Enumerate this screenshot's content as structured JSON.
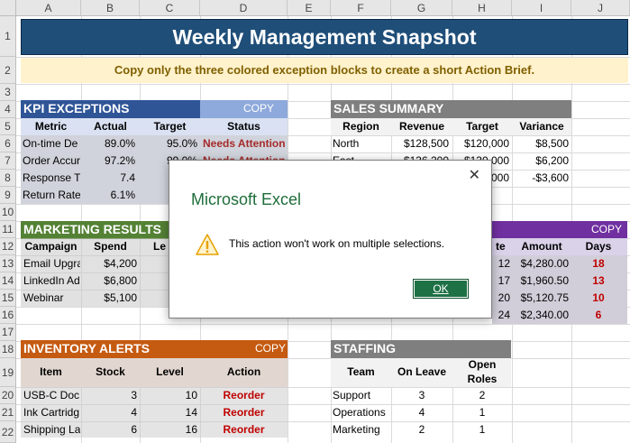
{
  "columns": [
    "A",
    "B",
    "C",
    "D",
    "E",
    "F",
    "G",
    "H",
    "I",
    "J"
  ],
  "rows": [
    "1",
    "2",
    "3",
    "4",
    "5",
    "6",
    "7",
    "8",
    "9",
    "10",
    "11",
    "12",
    "13",
    "14",
    "15",
    "16",
    "17",
    "18",
    "19",
    "20",
    "21",
    "22"
  ],
  "title": "Weekly Management Snapshot",
  "instruction": "Copy only the three colored exception blocks to create a short Action Brief.",
  "copy_label": "COPY",
  "colors": {
    "title_bg": "#1f4e79",
    "instruction_bg": "#fff2cc",
    "kpi": "#4472c4",
    "marketing": "#70ad47",
    "inventory": "#c55a11",
    "neutral": "#7f7f7f",
    "purple": "#7030a0",
    "attention": "#c00000"
  },
  "kpi": {
    "header": "KPI EXCEPTIONS",
    "columns": [
      "Metric",
      "Actual",
      "Target",
      "Status"
    ],
    "rows": [
      [
        "On-time De",
        "89.0%",
        "95.0%",
        "Needs Attention"
      ],
      [
        "Order Accur",
        "97.2%",
        "99.0%",
        "Needs Attention"
      ],
      [
        "Response T",
        "7.4",
        "",
        ""
      ],
      [
        "Return Rate",
        "6.1%",
        "",
        ""
      ]
    ]
  },
  "sales": {
    "header": "SALES SUMMARY",
    "columns": [
      "Region",
      "Revenue",
      "Target",
      "Variance"
    ],
    "rows": [
      [
        "North",
        "$128,500",
        "$120,000",
        "$8,500"
      ],
      [
        "East",
        "$136,200",
        "$130,000",
        "$6,200"
      ],
      [
        "",
        "",
        "000",
        "-$3,600"
      ]
    ]
  },
  "marketing": {
    "header": "MARKETING RESULTS",
    "columns": [
      "Campaign",
      "Spend",
      "Le"
    ],
    "rows": [
      [
        "Email Upgra",
        "$4,200"
      ],
      [
        "LinkedIn Ad",
        "$6,800"
      ],
      [
        "Webinar",
        "$5,100"
      ]
    ]
  },
  "overdue": {
    "columns": [
      "te",
      "Amount",
      "Days"
    ],
    "rows": [
      [
        "12",
        "$4,280.00",
        "18"
      ],
      [
        "17",
        "$1,960.50",
        "13"
      ],
      [
        "20",
        "$5,120.75",
        "10"
      ],
      [
        "24",
        "$2,340.00",
        "6"
      ]
    ]
  },
  "inventory": {
    "header": "INVENTORY ALERTS",
    "columns": [
      "Item",
      "Stock",
      "Level",
      "Action"
    ],
    "rows": [
      [
        "USB-C Doc",
        "3",
        "10",
        "Reorder"
      ],
      [
        "Ink Cartridg",
        "4",
        "14",
        "Reorder"
      ],
      [
        "Shipping La",
        "6",
        "16",
        "Reorder"
      ]
    ]
  },
  "staffing": {
    "header": "STAFFING",
    "col_team": "Team",
    "col_leave": "On Leave",
    "col_open1": "Open",
    "col_open2": "Roles",
    "rows": [
      [
        "Support",
        "3",
        "2"
      ],
      [
        "Operations",
        "4",
        "1"
      ],
      [
        "Marketing",
        "2",
        "1"
      ]
    ]
  },
  "dialog": {
    "title": "Microsoft Excel",
    "message": "This action won't work on multiple selections.",
    "ok": "OK",
    "close": "✕",
    "icon": "warning-icon"
  }
}
